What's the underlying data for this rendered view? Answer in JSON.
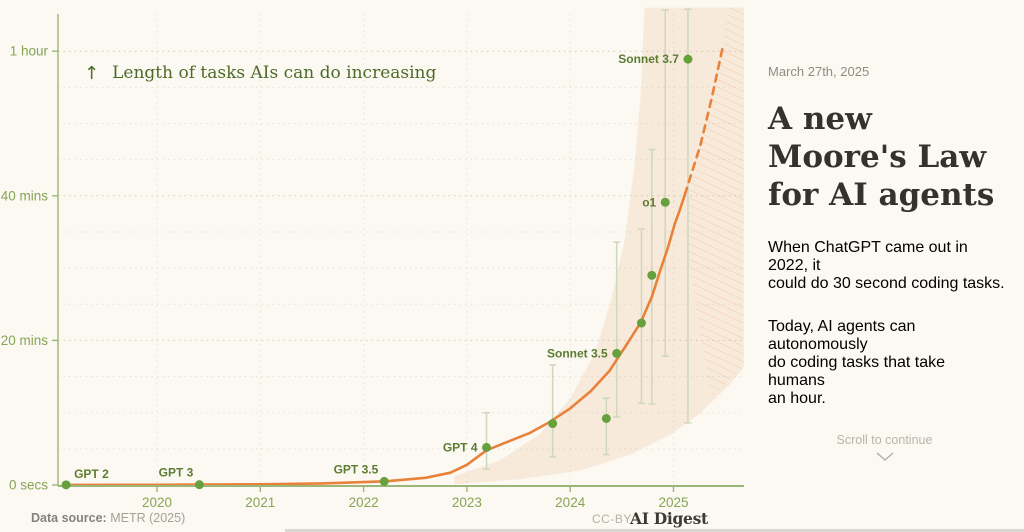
{
  "chart": {
    "annotation_arrow": "↑",
    "annotation": "Length of tasks AIs can do increasing",
    "footer": {
      "data_source_label": "Data source:",
      "data_source_value": " METR (2025)",
      "license": "CC-BY",
      "logo": "AI Digest"
    }
  },
  "chart_data": {
    "type": "scatter",
    "title": "Length of tasks AIs can do increasing",
    "x_axis": {
      "ticks": [
        2020,
        2021,
        2022,
        2023,
        2024,
        2025
      ],
      "range_years": [
        2019.0,
        2025.7
      ]
    },
    "y_axis": {
      "ticks": [
        {
          "label": "0 secs",
          "minutes": 0
        },
        {
          "label": "20 mins",
          "minutes": 20
        },
        {
          "label": "40 mins",
          "minutes": 40
        },
        {
          "label": "1 hour",
          "minutes": 60
        }
      ],
      "minor_ticks_minutes": [
        5,
        10,
        15,
        25,
        30,
        35,
        45,
        50,
        55
      ],
      "unit": "task length (human time)",
      "range_minutes": [
        0,
        66
      ]
    },
    "points": [
      {
        "label": "GPT 2",
        "year": 2019.12,
        "minutes": 0.02,
        "err_lo": null,
        "err_hi": null,
        "label_pos": "above-right"
      },
      {
        "label": "GPT 3",
        "year": 2020.41,
        "minutes": 0.05,
        "err_lo": null,
        "err_hi": null,
        "label_pos": "above-left"
      },
      {
        "label": "GPT 3.5",
        "year": 2022.2,
        "minutes": 0.5,
        "err_lo": null,
        "err_hi": null,
        "label_pos": "above-left"
      },
      {
        "label": "GPT 4",
        "year": 2023.19,
        "minutes": 5.2,
        "err_lo": 2.2,
        "err_hi": 10.0,
        "label_pos": "left"
      },
      {
        "label": "",
        "year": 2023.83,
        "minutes": 8.5,
        "err_lo": 3.9,
        "err_hi": 16.6,
        "label_pos": "left"
      },
      {
        "label": "",
        "year": 2024.35,
        "minutes": 9.2,
        "err_lo": 4.2,
        "err_hi": 12.0,
        "label_pos": "left"
      },
      {
        "label": "Sonnet 3.5",
        "year": 2024.45,
        "minutes": 18.2,
        "err_lo": 9.4,
        "err_hi": 33.6,
        "label_pos": "left"
      },
      {
        "label": "",
        "year": 2024.69,
        "minutes": 22.4,
        "err_lo": 11.3,
        "err_hi": 35.4,
        "label_pos": "left"
      },
      {
        "label": "",
        "year": 2024.79,
        "minutes": 29.0,
        "err_lo": 11.2,
        "err_hi": 46.4,
        "label_pos": "left"
      },
      {
        "label": "o1",
        "year": 2024.92,
        "minutes": 39.1,
        "err_lo": 17.8,
        "err_hi": 65.7,
        "label_pos": "left"
      },
      {
        "label": "Sonnet 3.7",
        "year": 2025.14,
        "minutes": 58.9,
        "err_lo": 8.6,
        "err_hi": 65.8,
        "label_pos": "left"
      }
    ],
    "trend_solid": [
      [
        2019.12,
        0.02
      ],
      [
        2020.0,
        0.03
      ],
      [
        2020.41,
        0.05
      ],
      [
        2021.0,
        0.1
      ],
      [
        2021.6,
        0.22
      ],
      [
        2022.2,
        0.5
      ],
      [
        2022.6,
        1.0
      ],
      [
        2022.84,
        1.7
      ],
      [
        2023.0,
        2.8
      ],
      [
        2023.19,
        4.8
      ],
      [
        2023.4,
        6.0
      ],
      [
        2023.61,
        7.2
      ],
      [
        2023.8,
        8.7
      ],
      [
        2024.0,
        10.6
      ],
      [
        2024.2,
        13.0
      ],
      [
        2024.38,
        15.8
      ],
      [
        2024.55,
        19.5
      ],
      [
        2024.68,
        22.4
      ],
      [
        2024.79,
        26.0
      ],
      [
        2024.87,
        29.6
      ],
      [
        2024.95,
        33.0
      ],
      [
        2025.01,
        36.0
      ],
      [
        2025.06,
        38.0
      ],
      [
        2025.11,
        40.2
      ]
    ],
    "trend_dashed": [
      [
        2025.11,
        40.2
      ],
      [
        2025.26,
        47.0
      ],
      [
        2025.37,
        53.5
      ],
      [
        2025.48,
        60.8
      ]
    ],
    "band_upper": [
      [
        2022.88,
        1.2
      ],
      [
        2023.32,
        3.4
      ],
      [
        2023.71,
        7.1
      ],
      [
        2024.0,
        12.0
      ],
      [
        2024.24,
        18.2
      ],
      [
        2024.4,
        25.8
      ],
      [
        2024.53,
        34.1
      ],
      [
        2024.62,
        43.8
      ],
      [
        2024.68,
        53.5
      ],
      [
        2024.72,
        66.0
      ]
    ],
    "band_lower": [
      [
        2022.88,
        0.1
      ],
      [
        2023.51,
        0.8
      ],
      [
        2024.1,
        2.0
      ],
      [
        2024.58,
        4.2
      ],
      [
        2024.97,
        7.0
      ],
      [
        2025.26,
        9.9
      ],
      [
        2025.55,
        14.0
      ],
      [
        2025.68,
        16.3
      ]
    ],
    "hatch_polygon": [
      [
        2025.14,
        40.2
      ],
      [
        2025.48,
        60.8
      ],
      [
        2025.52,
        66.0
      ],
      [
        2025.68,
        66.0
      ],
      [
        2025.68,
        16.3
      ],
      [
        2025.37,
        12.0
      ],
      [
        2025.2,
        26.0
      ],
      [
        2025.12,
        34.0
      ]
    ],
    "legend": null,
    "grid": "dotted",
    "colors": {
      "curve": "#e8823b",
      "dot": "#67a13e",
      "band_fill": "rgba(228,138,68,0.13)",
      "hatch_stroke": "rgba(228,138,68,0.30)",
      "error_bar": "#cdd8ba",
      "axis": "#9ab779",
      "axis_label": "#87a455",
      "model_label": "#5d7c33",
      "grid_major": "rgba(168,162,146,0.50)",
      "grid_minor": "rgba(168,162,146,0.26)"
    }
  },
  "sidebar": {
    "date": "March 27th, 2025",
    "title_lines": [
      "A new",
      "Moore's Law",
      "for AI agents"
    ],
    "paragraph1_lines": [
      "When ChatGPT came out in 2022, it",
      "could do 30 second coding tasks."
    ],
    "paragraph2_lines": [
      "Today, AI agents can autonomously",
      "do coding tasks that take humans",
      "an hour."
    ],
    "scroll_hint": "Scroll to continue"
  }
}
